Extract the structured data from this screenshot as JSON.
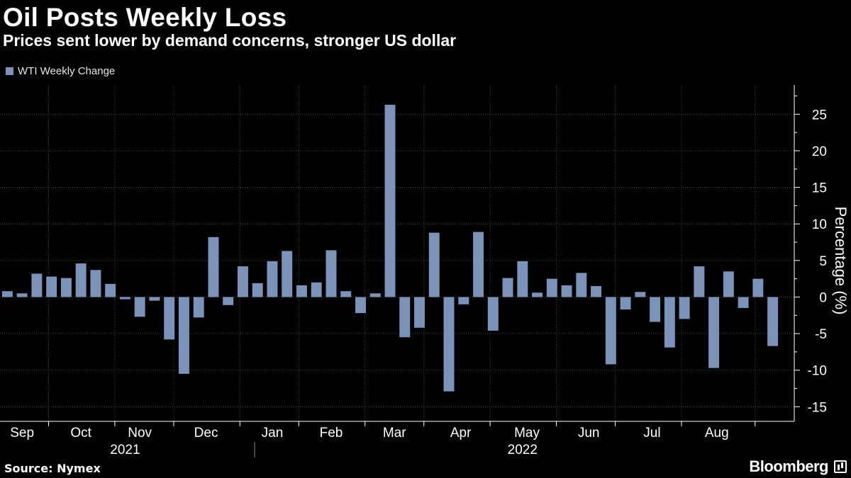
{
  "header": {
    "title": "Oil Posts Weekly Loss",
    "subtitle": "Prices sent lower by demand concerns, stronger US dollar"
  },
  "footer": {
    "source": "Source: Nymex",
    "brand": "Bloomberg"
  },
  "colors": {
    "background": "#000000",
    "bar": "#7b93b8",
    "grid": "#444444",
    "axis": "#ffffff",
    "text": "#ffffff"
  },
  "chart_data": {
    "type": "bar",
    "title": "Oil Posts Weekly Loss",
    "subtitle": "Prices sent lower by demand concerns, stronger US dollar",
    "xlabel": "",
    "ylabel": "Percentage (%)",
    "ylim": [
      -17,
      29
    ],
    "yticks": [
      25,
      20,
      15,
      10,
      5,
      0,
      -5,
      -10,
      -15
    ],
    "grid": true,
    "legend_position": "top-left",
    "series": [
      {
        "name": "WTI Weekly Change",
        "values": [
          0.8,
          0.5,
          3.2,
          2.8,
          2.6,
          4.6,
          3.7,
          1.8,
          -0.3,
          -2.7,
          -0.5,
          -5.8,
          -10.5,
          -2.8,
          8.2,
          -1.1,
          4.2,
          1.9,
          4.9,
          6.3,
          1.6,
          2.0,
          6.4,
          0.8,
          -2.2,
          0.5,
          26.3,
          -5.5,
          -4.2,
          8.8,
          -12.9,
          -1.0,
          8.9,
          -4.6,
          2.6,
          4.9,
          0.6,
          2.5,
          1.6,
          3.3,
          1.5,
          -9.2,
          -1.7,
          0.7,
          -3.4,
          -6.9,
          -3.0,
          4.2,
          -9.7,
          3.5,
          -1.5,
          2.5,
          -6.7
        ]
      }
    ],
    "month_labels": [
      {
        "label": "Sep",
        "week": 1.5
      },
      {
        "label": "Oct",
        "week": 5.5
      },
      {
        "label": "Nov",
        "week": 9.5
      },
      {
        "label": "Dec",
        "week": 14
      },
      {
        "label": "Jan",
        "week": 18.5
      },
      {
        "label": "Feb",
        "week": 22.5
      },
      {
        "label": "Mar",
        "week": 26.8
      },
      {
        "label": "Apr",
        "week": 31.3
      },
      {
        "label": "May",
        "week": 35.8
      },
      {
        "label": "Jun",
        "week": 40
      },
      {
        "label": "Jul",
        "week": 44.3
      },
      {
        "label": "Aug",
        "week": 48.7
      }
    ],
    "month_boundaries": [
      3.3,
      7.8,
      11.8,
      16.3,
      20.3,
      24.8,
      28.8,
      33.3,
      37.8,
      41.8,
      46.3,
      51.3
    ],
    "year_labels": [
      {
        "label": "2021",
        "week": 8.5
      },
      {
        "label": "2022",
        "week": 35.5
      }
    ],
    "year_boundary": 17.3
  }
}
